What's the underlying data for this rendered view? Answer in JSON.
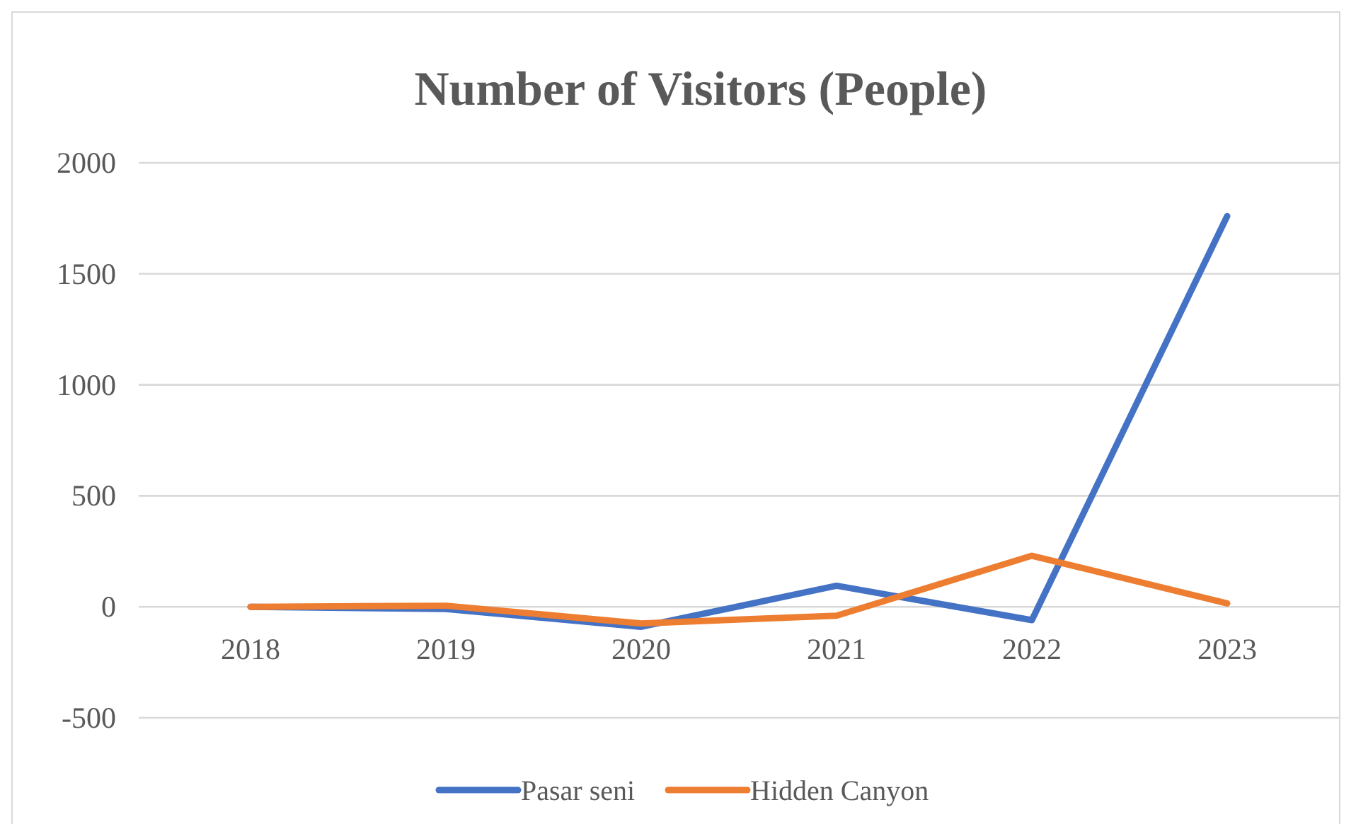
{
  "chart_data": {
    "type": "line",
    "title": "Number of Visitors (People)",
    "categories": [
      "2018",
      "2019",
      "2020",
      "2021",
      "2022",
      "2023"
    ],
    "series": [
      {
        "name": "Pasar seni",
        "color": "#4472c4",
        "values": [
          0,
          -10,
          -90,
          95,
          -60,
          1760
        ]
      },
      {
        "name": "Hidden Canyon",
        "color": "#ed7d31",
        "values": [
          0,
          5,
          -75,
          -40,
          230,
          15
        ]
      }
    ],
    "ylim": [
      -500,
      2000
    ],
    "yticks": [
      -500,
      0,
      500,
      1000,
      1500,
      2000
    ],
    "grid": "y",
    "legend": "bottom",
    "marker": "none",
    "line_style": "solid"
  }
}
